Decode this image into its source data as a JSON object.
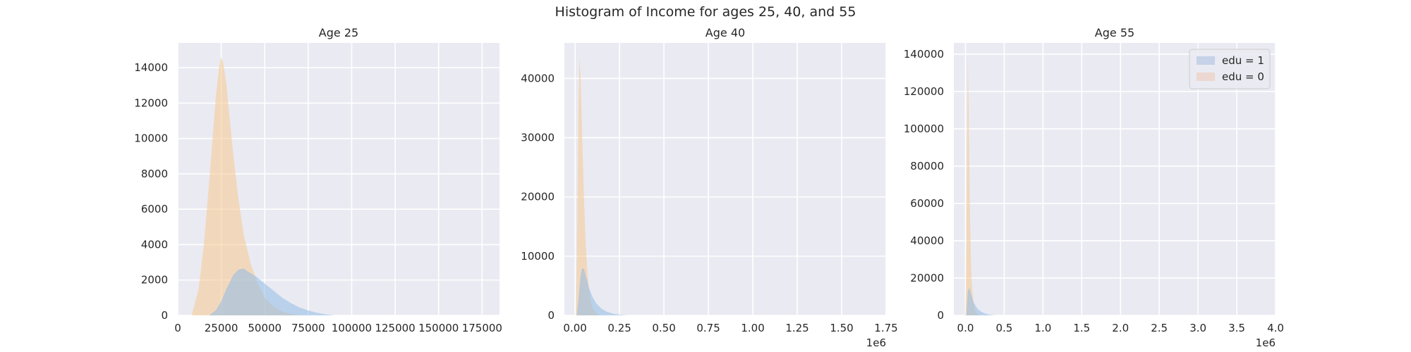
{
  "figure": {
    "title": "Histogram of Income for ages 25, 40, and 55"
  },
  "colors": {
    "panel_bg": "#eaeaf2",
    "grid": "#ffffff",
    "edu1_fill": "#8fbce6",
    "edu0_fill": "#f5c88f",
    "legend_edu1_patch": "#c6d2e8",
    "legend_edu0_patch": "#ecd8d0"
  },
  "chart_data": [
    {
      "type": "area",
      "title": "Age 25",
      "xlim": [
        0,
        185000
      ],
      "ylim": [
        0,
        15400
      ],
      "xticks": [
        0,
        25000,
        50000,
        75000,
        100000,
        125000,
        150000,
        175000
      ],
      "xtick_labels": [
        "0",
        "25000",
        "50000",
        "75000",
        "100000",
        "125000",
        "150000",
        "175000"
      ],
      "yticks": [
        0,
        2000,
        4000,
        6000,
        8000,
        10000,
        12000,
        14000
      ],
      "ytick_labels": [
        "0",
        "2000",
        "4000",
        "6000",
        "8000",
        "10000",
        "12000",
        "14000"
      ],
      "offset_label": "",
      "series": [
        {
          "name": "edu = 0",
          "x": [
            8000,
            12000,
            15000,
            18000,
            20000,
            22000,
            24000,
            25000,
            26000,
            27000,
            28000,
            30000,
            32000,
            35000,
            38000,
            42000,
            46000,
            50000,
            55000,
            60000,
            65000,
            70000
          ],
          "values": [
            0,
            1500,
            4000,
            7500,
            10000,
            12500,
            14200,
            14600,
            14300,
            13700,
            13000,
            11000,
            9000,
            6500,
            4500,
            2900,
            1800,
            1000,
            500,
            220,
            80,
            0
          ]
        },
        {
          "name": "edu = 1",
          "x": [
            18000,
            22000,
            25000,
            28000,
            32000,
            35000,
            38000,
            40000,
            45000,
            50000,
            55000,
            60000,
            65000,
            70000,
            75000,
            80000,
            85000,
            90000
          ],
          "values": [
            0,
            300,
            800,
            1500,
            2300,
            2600,
            2650,
            2500,
            2200,
            1800,
            1400,
            1000,
            700,
            450,
            280,
            150,
            60,
            0
          ]
        }
      ]
    },
    {
      "type": "area",
      "title": "Age 40",
      "xlim": [
        -60000,
        1750000
      ],
      "ylim": [
        0,
        46000
      ],
      "xticks": [
        0,
        250000,
        500000,
        750000,
        1000000,
        1250000,
        1500000,
        1750000
      ],
      "xtick_labels": [
        "0.00",
        "0.25",
        "0.50",
        "0.75",
        "1.00",
        "1.25",
        "1.50",
        "1.75"
      ],
      "yticks": [
        0,
        10000,
        20000,
        30000,
        40000
      ],
      "ytick_labels": [
        "0",
        "10000",
        "20000",
        "30000",
        "40000"
      ],
      "offset_label": "1e6",
      "series": [
        {
          "name": "edu = 0",
          "x": [
            5000,
            10000,
            15000,
            20000,
            25000,
            30000,
            35000,
            40000,
            50000,
            60000,
            70000,
            80000,
            90000,
            100000,
            120000,
            140000
          ],
          "values": [
            0,
            9000,
            24000,
            37000,
            43500,
            41000,
            36000,
            30000,
            20000,
            12000,
            7000,
            4000,
            2200,
            1200,
            400,
            0
          ]
        },
        {
          "name": "edu = 1",
          "x": [
            10000,
            20000,
            30000,
            40000,
            50000,
            60000,
            70000,
            80000,
            100000,
            120000,
            150000,
            180000,
            220000,
            260000,
            300000
          ],
          "values": [
            0,
            3000,
            6500,
            8000,
            7800,
            6800,
            5600,
            4500,
            3000,
            2000,
            1100,
            600,
            250,
            80,
            0
          ]
        }
      ]
    },
    {
      "type": "area",
      "title": "Age 55",
      "xlim": [
        -150000,
        4000000
      ],
      "ylim": [
        0,
        146000
      ],
      "xticks": [
        0,
        500000,
        1000000,
        1500000,
        2000000,
        2500000,
        3000000,
        3500000,
        4000000
      ],
      "xtick_labels": [
        "0.0",
        "0.5",
        "1.0",
        "1.5",
        "2.0",
        "2.5",
        "3.0",
        "3.5",
        "4.0"
      ],
      "yticks": [
        0,
        20000,
        40000,
        60000,
        80000,
        100000,
        120000,
        140000
      ],
      "ytick_labels": [
        "0",
        "20000",
        "40000",
        "60000",
        "80000",
        "100000",
        "120000",
        "140000"
      ],
      "offset_label": "1e6",
      "legend": {
        "position": "top-right",
        "entries": [
          "edu = 1",
          "edu = 0"
        ]
      },
      "series": [
        {
          "name": "edu = 0",
          "x": [
            0,
            10000,
            20000,
            30000,
            40000,
            50000,
            60000,
            70000,
            80000,
            100000,
            120000,
            150000,
            200000
          ],
          "values": [
            0,
            30000,
            95000,
            138000,
            115000,
            80000,
            50000,
            30000,
            18000,
            8000,
            3000,
            800,
            0
          ]
        },
        {
          "name": "edu = 1",
          "x": [
            10000,
            30000,
            50000,
            70000,
            90000,
            110000,
            150000,
            200000,
            260000,
            320000,
            400000
          ],
          "values": [
            0,
            13000,
            15000,
            12000,
            9000,
            6500,
            3800,
            2000,
            900,
            300,
            0
          ]
        }
      ]
    }
  ]
}
